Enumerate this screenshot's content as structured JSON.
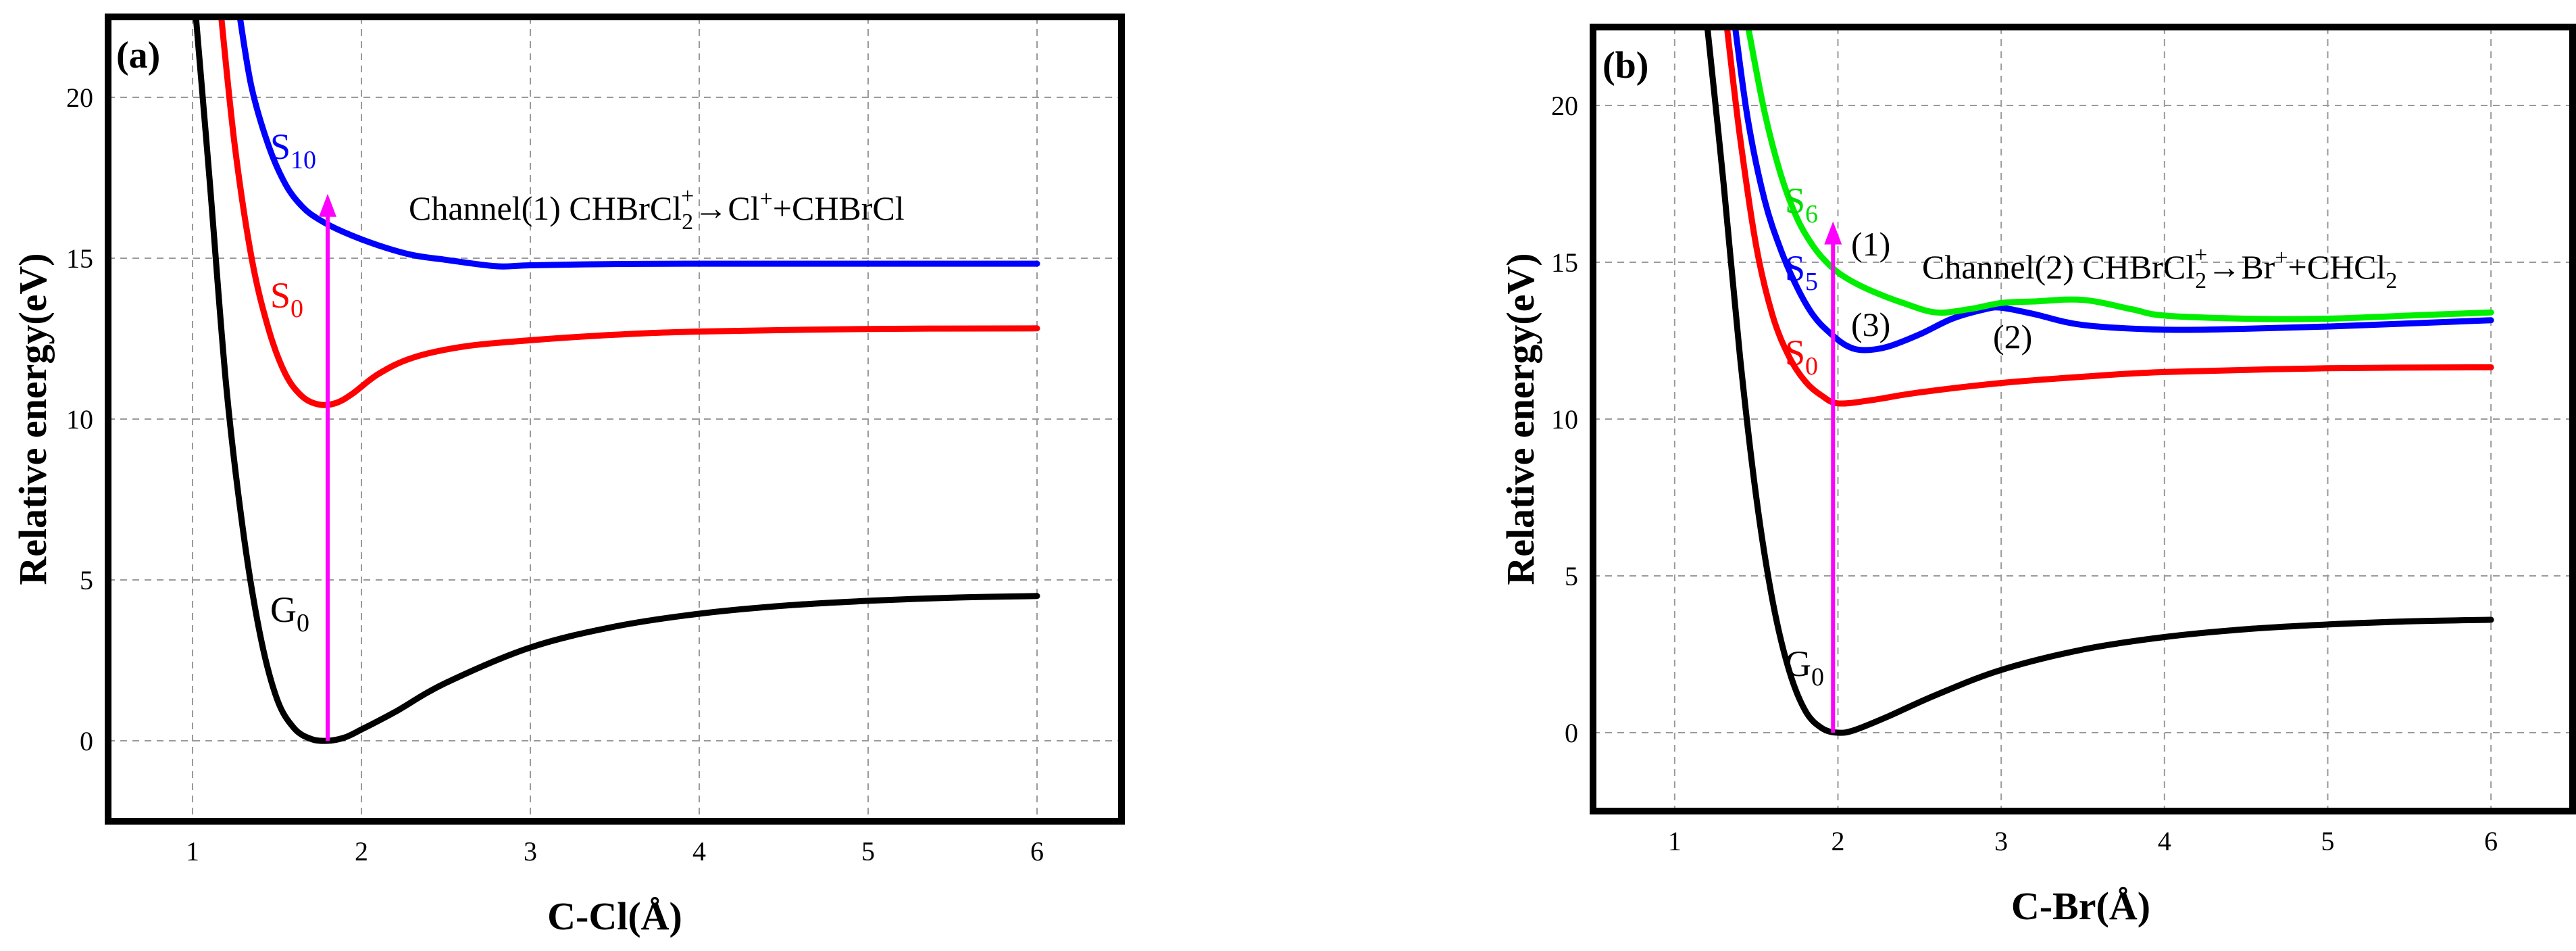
{
  "chart_data": [
    {
      "type": "line",
      "panel_label": "(a)",
      "xlabel": "C-Cl(Å)",
      "ylabel": "Relative energy(eV)",
      "xlim": [
        0.5,
        6.5
      ],
      "ylim": [
        -2.5,
        22.5
      ],
      "xticks": [
        1,
        2,
        3,
        4,
        5,
        6
      ],
      "yticks": [
        0,
        5,
        10,
        15,
        20
      ],
      "grid": true,
      "series": [
        {
          "name": "G0",
          "label_main": "G",
          "label_sub": "0",
          "color": "#000000",
          "x": [
            1.02,
            1.1,
            1.2,
            1.3,
            1.4,
            1.5,
            1.6,
            1.7,
            1.8,
            1.9,
            2.0,
            2.2,
            2.5,
            3.0,
            3.5,
            4.0,
            4.5,
            5.0,
            5.5,
            6.0
          ],
          "y": [
            22.5,
            17.5,
            11.0,
            6.5,
            3.3,
            1.3,
            0.4,
            0.06,
            0.0,
            0.1,
            0.35,
            0.9,
            1.8,
            2.9,
            3.55,
            3.95,
            4.2,
            4.35,
            4.45,
            4.5
          ]
        },
        {
          "name": "S0",
          "label_main": "S",
          "label_sub": "0",
          "color": "#ff0000",
          "x": [
            1.17,
            1.25,
            1.35,
            1.45,
            1.55,
            1.65,
            1.75,
            1.85,
            1.95,
            2.1,
            2.3,
            2.6,
            3.0,
            3.5,
            4.0,
            5.0,
            6.0
          ],
          "y": [
            22.5,
            18.5,
            15.0,
            12.8,
            11.4,
            10.7,
            10.45,
            10.5,
            10.8,
            11.4,
            11.9,
            12.25,
            12.45,
            12.62,
            12.72,
            12.8,
            12.82
          ]
        },
        {
          "name": "S10",
          "label_main": "S",
          "label_sub": "10",
          "color": "#0000ff",
          "x": [
            1.28,
            1.35,
            1.45,
            1.55,
            1.65,
            1.75,
            1.9,
            2.1,
            2.3,
            2.5,
            2.8,
            3.0,
            3.5,
            4.0,
            5.0,
            6.0
          ],
          "y": [
            22.5,
            20.3,
            18.5,
            17.3,
            16.6,
            16.2,
            15.8,
            15.4,
            15.1,
            14.95,
            14.75,
            14.78,
            14.82,
            14.83,
            14.83,
            14.83
          ]
        }
      ],
      "arrow": {
        "x": 1.8,
        "y_from": 0.0,
        "y_to": 17.0,
        "color": "#ff00ff"
      },
      "annotation": {
        "prefix": "Channel(1) CHBrCl",
        "sub": "2",
        "sup": "+",
        "arrow": "→",
        "mid": "Cl",
        "sup2": "+",
        "suffix": "+CHBrCl"
      }
    },
    {
      "type": "line",
      "panel_label": "(b)",
      "xlabel": "C-Br(Å)",
      "ylabel": "Relative energy(eV)",
      "xlim": [
        0.5,
        6.5
      ],
      "ylim": [
        -2.5,
        22.5
      ],
      "xticks": [
        1,
        2,
        3,
        4,
        5,
        6
      ],
      "yticks": [
        0,
        5,
        10,
        15,
        20
      ],
      "grid": true,
      "series": [
        {
          "name": "G0",
          "label_main": "G",
          "label_sub": "0",
          "color": "#000000",
          "x": [
            1.2,
            1.3,
            1.4,
            1.5,
            1.6,
            1.7,
            1.8,
            1.9,
            2.0,
            2.1,
            2.3,
            2.6,
            3.0,
            3.5,
            4.0,
            4.5,
            5.0,
            5.5,
            6.0
          ],
          "y": [
            22.5,
            17.5,
            12.0,
            7.5,
            4.2,
            2.0,
            0.7,
            0.15,
            0.0,
            0.08,
            0.5,
            1.2,
            2.0,
            2.65,
            3.05,
            3.3,
            3.45,
            3.55,
            3.6
          ]
        },
        {
          "name": "S0",
          "label_main": "S",
          "label_sub": "0",
          "color": "#ff0000",
          "x": [
            1.32,
            1.4,
            1.5,
            1.6,
            1.7,
            1.8,
            1.9,
            2.0,
            2.2,
            2.5,
            3.0,
            3.5,
            4.0,
            5.0,
            6.0
          ],
          "y": [
            22.5,
            19.0,
            15.5,
            13.3,
            12.0,
            11.2,
            10.75,
            10.5,
            10.6,
            10.85,
            11.15,
            11.35,
            11.5,
            11.62,
            11.65
          ]
        },
        {
          "name": "S5",
          "label_main": "S",
          "label_sub": "5",
          "color": "#0000ff",
          "x": [
            1.37,
            1.45,
            1.55,
            1.65,
            1.75,
            1.85,
            1.95,
            2.05,
            2.15,
            2.3,
            2.5,
            2.7,
            2.9,
            3.0,
            3.2,
            3.5,
            4.0,
            4.5,
            5.0,
            5.5,
            6.0
          ],
          "y": [
            22.5,
            19.5,
            17.0,
            15.4,
            14.2,
            13.3,
            12.75,
            12.35,
            12.2,
            12.3,
            12.7,
            13.2,
            13.5,
            13.55,
            13.35,
            13.0,
            12.85,
            12.88,
            12.95,
            13.05,
            13.15
          ]
        },
        {
          "name": "S6",
          "label_main": "S",
          "label_sub": "6",
          "color": "#00ee00",
          "x": [
            1.45,
            1.55,
            1.65,
            1.75,
            1.85,
            1.95,
            2.05,
            2.2,
            2.4,
            2.6,
            2.8,
            3.0,
            3.2,
            3.5,
            3.8,
            4.0,
            4.5,
            5.0,
            5.5,
            6.0
          ],
          "y": [
            22.5,
            19.8,
            17.8,
            16.4,
            15.5,
            14.9,
            14.5,
            14.1,
            13.7,
            13.4,
            13.5,
            13.7,
            13.75,
            13.8,
            13.5,
            13.3,
            13.2,
            13.2,
            13.3,
            13.4
          ]
        }
      ],
      "arrow": {
        "x": 1.97,
        "y_from": 0.0,
        "y_to": 16.3,
        "color": "#ff00ff"
      },
      "annotation": {
        "prefix": "Channel(2) CHBrCl",
        "sub": "2",
        "sup": "+",
        "arrow": "→",
        "mid": "Br",
        "sup2": "+",
        "suffix": "+CHCl",
        "sub2": "2"
      },
      "points": [
        "(1)",
        "(2)",
        "(3)"
      ]
    }
  ]
}
